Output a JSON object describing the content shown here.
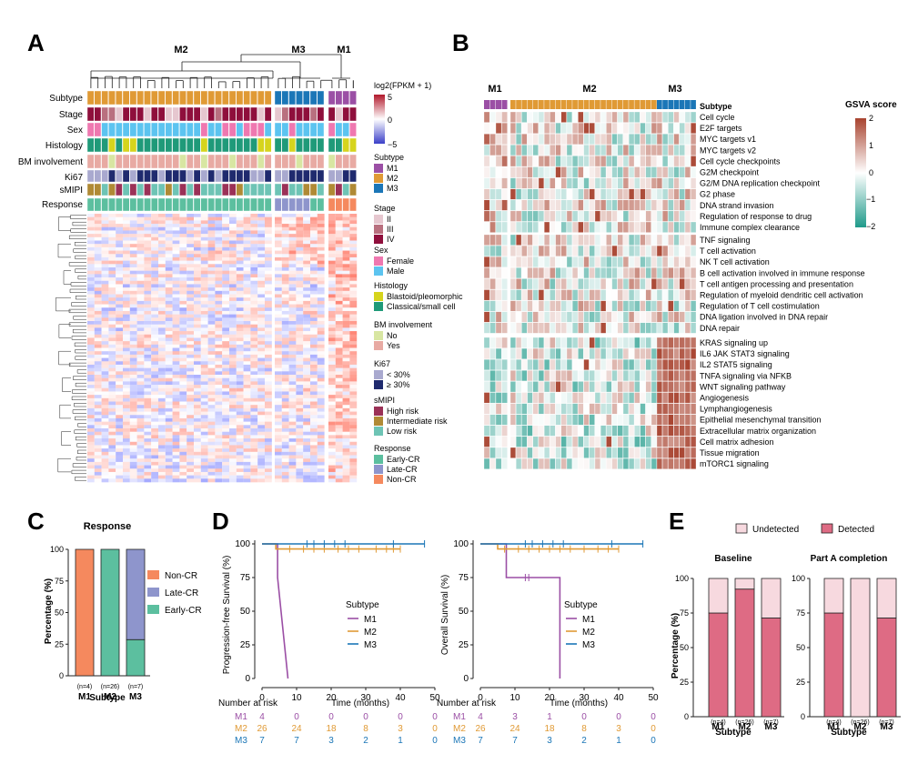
{
  "colors": {
    "M1": "#9b4fa5",
    "M2": "#e09a35",
    "M3": "#1b76b7",
    "stage_II": "#e6c7cf",
    "stage_III": "#b9707f",
    "stage_IV": "#8f0f3c",
    "female": "#ef78b0",
    "male": "#5cc4f0",
    "blastoid": "#d6d41d",
    "classical": "#1f9a79",
    "bm_no": "#d8e6a2",
    "bm_yes": "#e8aaa3",
    "ki_low": "#a9a9cf",
    "ki_high": "#1f2a6e",
    "risk_high": "#9b3157",
    "risk_int": "#b08a35",
    "risk_low": "#6ec4b5",
    "early_cr": "#5cbf9f",
    "late_cr": "#8e95cc",
    "non_cr": "#f5895e",
    "hm_high": "#b2182b",
    "hm_low": "#3a3fc8",
    "gsva_high": "#a8432f",
    "gsva_low": "#1f9a8a",
    "km_M1": "#9b4fa5",
    "km_M2": "#e09a35",
    "km_M3": "#1b76b7",
    "detected": "#de6b84",
    "undetected": "#f7d9df"
  },
  "panelA": {
    "label": "A",
    "clusters": [
      "M2",
      "M3",
      "M1"
    ],
    "rows": [
      "Subtype",
      "Stage",
      "Sex",
      "Histology",
      "BM involvement",
      "Ki67",
      "sMIPI",
      "Response"
    ],
    "scale_title": "log2(FPKM + 1)",
    "scale_ticks": [
      "5",
      "0",
      "−5"
    ],
    "legend": [
      {
        "title": "Subtype",
        "items": [
          "M1",
          "M2",
          "M3"
        ]
      },
      {
        "title": "Stage",
        "items": [
          "II",
          "III",
          "IV"
        ]
      },
      {
        "title": "Sex",
        "items": [
          "Female",
          "Male"
        ]
      },
      {
        "title": "Histology",
        "items": [
          "Blastoid/pleomorphic",
          "Classical/small cell"
        ]
      },
      {
        "title": "BM involvement",
        "items": [
          "No",
          "Yes"
        ]
      },
      {
        "title": "Ki67",
        "items": [
          "< 30%",
          "≥ 30%"
        ]
      },
      {
        "title": "sMIPI",
        "items": [
          "High risk",
          "Intermediate risk",
          "Low risk"
        ]
      },
      {
        "title": "Response",
        "items": [
          "Early-CR",
          "Late-CR",
          "Non-CR"
        ]
      }
    ]
  },
  "panelB": {
    "label": "B",
    "clusters": [
      "M1",
      "M2",
      "M3"
    ],
    "subtype_label": "Subtype",
    "scale_title": "GSVA score",
    "scale_ticks": [
      "2",
      "1",
      "0",
      "−1",
      "−2"
    ],
    "pathways": [
      "Cell cycle",
      "E2F targets",
      "MYC targets v1",
      "MYC targets v2",
      "Cell cycle checkpoints",
      "G2M checkpoint",
      "G2/M DNA replication checkpoint",
      "G2 phase",
      "DNA strand invasion",
      "Regulation of response to drug",
      "Immune complex clearance",
      "TNF signaling",
      "T cell activation",
      "NK T cell activation",
      "B cell activation involved in immune response",
      "T cell antigen processing and presentation",
      "Regulation of myeloid dendritic cell activation",
      "Regulation of T cell costimulation",
      "DNA ligation involved in DNA repair",
      "DNA repair",
      "KRAS signaling up",
      "IL6 JAK STAT3 signaling",
      "IL2 STAT5 signaling",
      "TNFA signaling via NFKB",
      "WNT signaling pathway",
      "Angiogenesis",
      "Lymphangiogenesis",
      "Epithelial mesenchymal transition",
      "Extracellular matrix organization",
      "Cell matrix adhesion",
      "Tissue migration",
      "mTORC1 signaling"
    ]
  },
  "panelC": {
    "label": "C",
    "chart_data": {
      "type": "bar",
      "title": "Response",
      "categories": [
        "M1",
        "M2",
        "M3"
      ],
      "n_labels": [
        "(n=4)",
        "(n=26)",
        "(n=7)"
      ],
      "series": [
        {
          "name": "Early-CR",
          "values": [
            0,
            100,
            28.6
          ]
        },
        {
          "name": "Late-CR",
          "values": [
            0,
            0,
            71.4
          ]
        },
        {
          "name": "Non-CR",
          "values": [
            100,
            0,
            0
          ]
        }
      ],
      "legend_order": [
        "Non-CR",
        "Late-CR",
        "Early-CR"
      ],
      "xlabel": "Subtype",
      "ylabel": "Percentage (%)",
      "ylim": [
        0,
        100
      ],
      "yticks": [
        "0",
        "25",
        "50",
        "75",
        "100"
      ]
    }
  },
  "panelD": {
    "label": "D",
    "legend_title": "Subtype",
    "at_risk_title": "Number at risk",
    "xlabel": "Time (months)",
    "xticks": [
      "0",
      "10",
      "20",
      "30",
      "40",
      "50"
    ],
    "yticks": [
      "0",
      "25",
      "50",
      "75",
      "100"
    ],
    "risk_rows": [
      {
        "group": "M1",
        "values": [
          "4",
          "0",
          "0",
          "0",
          "0",
          "0"
        ]
      },
      {
        "group": "M2",
        "values": [
          "26",
          "24",
          "18",
          "8",
          "3",
          "0"
        ]
      },
      {
        "group": "M3",
        "values": [
          "7",
          "7",
          "3",
          "2",
          "1",
          "0"
        ]
      }
    ],
    "risk_rows_os": [
      {
        "group": "M1",
        "values": [
          "4",
          "3",
          "1",
          "0",
          "0",
          "0"
        ]
      },
      {
        "group": "M2",
        "values": [
          "26",
          "24",
          "18",
          "8",
          "3",
          "0"
        ]
      },
      {
        "group": "M3",
        "values": [
          "7",
          "7",
          "3",
          "2",
          "1",
          "0"
        ]
      }
    ],
    "chart_data": [
      {
        "type": "line",
        "ylabel": "Progression-free Survival (%)",
        "xlim": [
          0,
          50
        ],
        "ylim": [
          0,
          100
        ],
        "series": [
          {
            "name": "M1",
            "x": [
              0,
              4.5,
              4.5,
              5.5,
              5.5,
              6.5,
              6.5,
              7.5
            ],
            "y": [
              100,
              100,
              75,
              50,
              50,
              25,
              25,
              0
            ]
          },
          {
            "name": "M2",
            "x": [
              0,
              4,
              4,
              40
            ],
            "y": [
              100,
              100,
              96.2,
              96.2
            ],
            "censor": [
              8,
              12,
              15,
              18,
              22,
              25,
              28,
              33,
              36,
              38,
              40
            ]
          },
          {
            "name": "M3",
            "x": [
              0,
              47
            ],
            "y": [
              100,
              100
            ],
            "censor": [
              13,
              15,
              18,
              21,
              24,
              38,
              47
            ]
          }
        ]
      },
      {
        "type": "line",
        "ylabel": "Overall Survival (%)",
        "xlim": [
          0,
          50
        ],
        "ylim": [
          0,
          100
        ],
        "series": [
          {
            "name": "M1",
            "x": [
              0,
              7.5,
              7.5,
              23,
              23
            ],
            "y": [
              100,
              100,
              75,
              75,
              0
            ],
            "censor": [
              13,
              14
            ]
          },
          {
            "name": "M2",
            "x": [
              0,
              5,
              5,
              40
            ],
            "y": [
              100,
              100,
              96.2,
              96.2
            ],
            "censor": [
              7,
              11,
              14,
              17,
              20,
              23,
              26,
              30,
              34,
              37,
              40
            ]
          },
          {
            "name": "M3",
            "x": [
              0,
              47
            ],
            "y": [
              100,
              100
            ],
            "censor": [
              13,
              15,
              18,
              21,
              24,
              38,
              47
            ]
          }
        ]
      }
    ]
  },
  "panelE": {
    "label": "E",
    "legend": [
      "Undetected",
      "Detected"
    ],
    "chart_data": [
      {
        "type": "bar",
        "title": "Baseline",
        "categories": [
          "M1",
          "M2",
          "M3"
        ],
        "n_labels": [
          "(n=4)",
          "(n=26)",
          "(n=7)"
        ],
        "series": [
          {
            "name": "Detected",
            "values": [
              75,
              92.3,
              71.4
            ]
          },
          {
            "name": "Undetected",
            "values": [
              25,
              7.7,
              28.6
            ]
          }
        ],
        "xlabel": "Subtype",
        "ylabel": "Percentage (%)",
        "ylim": [
          0,
          100
        ],
        "yticks": [
          "0",
          "25",
          "50",
          "75",
          "100"
        ]
      },
      {
        "type": "bar",
        "title": "Part A completion",
        "categories": [
          "M1",
          "M2",
          "M3"
        ],
        "n_labels": [
          "(n=4)",
          "(n=26)",
          "(n=7)"
        ],
        "series": [
          {
            "name": "Detected",
            "values": [
              75,
              0,
              71.4
            ]
          },
          {
            "name": "Undetected",
            "values": [
              25,
              100,
              28.6
            ]
          }
        ],
        "xlabel": "Subtype",
        "ylabel": "Percentage (%)",
        "ylim": [
          0,
          100
        ],
        "yticks": [
          "0",
          "25",
          "50",
          "75",
          "100"
        ]
      }
    ]
  }
}
